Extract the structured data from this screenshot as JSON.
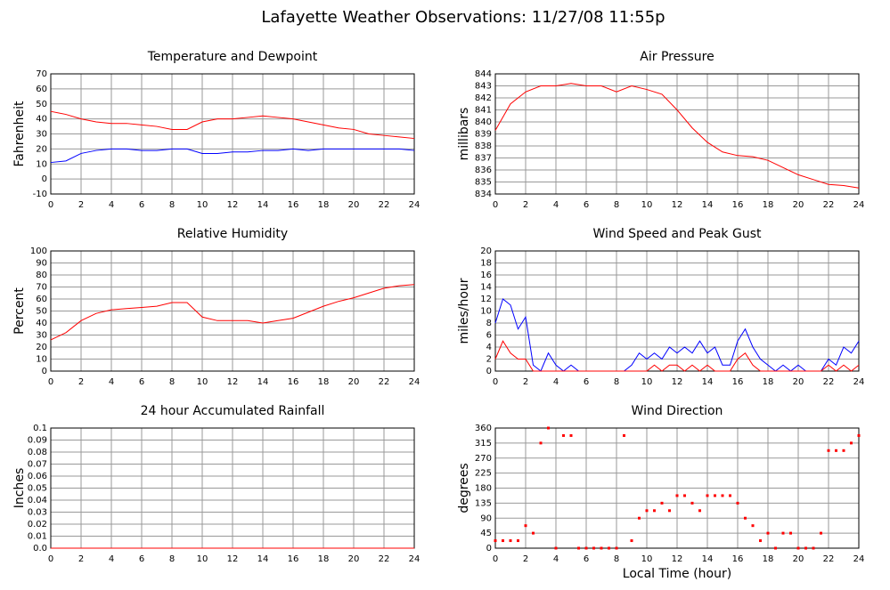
{
  "title": "Lafayette Weather Observations: 11/27/08 11:55p",
  "chart_data": [
    {
      "type": "line",
      "title": "Temperature and Dewpoint",
      "ylabel": "Fahrenheit",
      "x": [
        0,
        1,
        2,
        3,
        4,
        5,
        6,
        7,
        8,
        9,
        10,
        11,
        12,
        13,
        14,
        15,
        16,
        17,
        18,
        19,
        20,
        21,
        22,
        23,
        24
      ],
      "series": [
        {
          "color": "#ff0000",
          "values": [
            45,
            43,
            40,
            38,
            37,
            37,
            36,
            35,
            33,
            33,
            38,
            40,
            40,
            41,
            42,
            41,
            40,
            38,
            36,
            34,
            33,
            30,
            29,
            28,
            27
          ]
        },
        {
          "color": "#0000ff",
          "values": [
            11,
            12,
            17,
            19,
            20,
            20,
            19,
            19,
            20,
            20,
            17,
            17,
            18,
            18,
            19,
            19,
            20,
            19,
            20,
            20,
            20,
            20,
            20,
            20,
            19
          ]
        }
      ],
      "xlim": [
        0,
        24
      ],
      "xticks": [
        0,
        2,
        4,
        6,
        8,
        10,
        12,
        14,
        16,
        18,
        20,
        22,
        24
      ],
      "ylim": [
        -10,
        70
      ],
      "yticks": [
        -10,
        0,
        10,
        20,
        30,
        40,
        50,
        60,
        70
      ],
      "grid": true
    },
    {
      "type": "line",
      "title": "Air Pressure",
      "ylabel": "millibars",
      "x": [
        0,
        1,
        2,
        3,
        4,
        5,
        6,
        7,
        8,
        9,
        10,
        11,
        12,
        13,
        14,
        15,
        16,
        17,
        18,
        19,
        20,
        21,
        22,
        23,
        24
      ],
      "series": [
        {
          "color": "#ff0000",
          "values": [
            839.3,
            841.5,
            842.5,
            843,
            843,
            843.2,
            843,
            843,
            842.5,
            843,
            842.7,
            842.3,
            841,
            839.5,
            838.3,
            837.5,
            837.2,
            837.1,
            836.8,
            836.2,
            835.6,
            835.2,
            834.8,
            834.7,
            834.5
          ]
        }
      ],
      "xlim": [
        0,
        24
      ],
      "xticks": [
        0,
        2,
        4,
        6,
        8,
        10,
        12,
        14,
        16,
        18,
        20,
        22,
        24
      ],
      "ylim": [
        834,
        844
      ],
      "yticks": [
        834,
        835,
        836,
        837,
        838,
        839,
        840,
        841,
        842,
        843,
        844
      ],
      "grid": true
    },
    {
      "type": "line",
      "title": "Relative Humidity",
      "ylabel": "Percent",
      "x": [
        0,
        1,
        2,
        3,
        4,
        5,
        6,
        7,
        8,
        9,
        10,
        11,
        12,
        13,
        14,
        15,
        16,
        17,
        18,
        19,
        20,
        21,
        22,
        23,
        24
      ],
      "series": [
        {
          "color": "#ff0000",
          "values": [
            26,
            32,
            42,
            48,
            51,
            52,
            53,
            54,
            57,
            57,
            45,
            42,
            42,
            42,
            40,
            42,
            44,
            49,
            54,
            58,
            61,
            65,
            69,
            71,
            72
          ]
        }
      ],
      "xlim": [
        0,
        24
      ],
      "xticks": [
        0,
        2,
        4,
        6,
        8,
        10,
        12,
        14,
        16,
        18,
        20,
        22,
        24
      ],
      "ylim": [
        0,
        100
      ],
      "yticks": [
        0,
        10,
        20,
        30,
        40,
        50,
        60,
        70,
        80,
        90,
        100
      ],
      "grid": true
    },
    {
      "type": "line",
      "title": "Wind Speed and Peak Gust",
      "ylabel": "miles/hour",
      "x": [
        0,
        0.5,
        1,
        1.5,
        2,
        2.5,
        3,
        3.5,
        4,
        4.5,
        5,
        5.5,
        6,
        6.5,
        7,
        7.5,
        8,
        8.5,
        9,
        9.5,
        10,
        10.5,
        11,
        11.5,
        12,
        12.5,
        13,
        13.5,
        14,
        14.5,
        15,
        15.5,
        16,
        16.5,
        17,
        17.5,
        18,
        18.5,
        19,
        19.5,
        20,
        20.5,
        21,
        21.5,
        22,
        22.5,
        23,
        23.5,
        24
      ],
      "series": [
        {
          "color": "#0000ff",
          "values": [
            8,
            12,
            11,
            7,
            9,
            1,
            0,
            3,
            1,
            0,
            1,
            0,
            0,
            0,
            0,
            0,
            0,
            0,
            1,
            3,
            2,
            3,
            2,
            4,
            3,
            4,
            3,
            5,
            3,
            4,
            1,
            1,
            5,
            7,
            4,
            2,
            1,
            0,
            1,
            0,
            1,
            0,
            0,
            0,
            2,
            1,
            4,
            3,
            5
          ]
        },
        {
          "color": "#ff0000",
          "values": [
            2,
            5,
            3,
            2,
            2,
            0,
            0,
            0,
            0,
            0,
            0,
            0,
            0,
            0,
            0,
            0,
            0,
            0,
            0,
            0,
            0,
            1,
            0,
            1,
            1,
            0,
            1,
            0,
            1,
            0,
            0,
            0,
            2,
            3,
            1,
            0,
            0,
            0,
            0,
            0,
            0,
            0,
            0,
            0,
            1,
            0,
            1,
            0,
            1
          ]
        }
      ],
      "xlim": [
        0,
        24
      ],
      "xticks": [
        0,
        2,
        4,
        6,
        8,
        10,
        12,
        14,
        16,
        18,
        20,
        22,
        24
      ],
      "ylim": [
        0,
        20
      ],
      "yticks": [
        0,
        2,
        4,
        6,
        8,
        10,
        12,
        14,
        16,
        18,
        20
      ],
      "grid": true
    },
    {
      "type": "line",
      "title": "24 hour Accumulated Rainfall",
      "ylabel": "Inches",
      "x": [
        0,
        24
      ],
      "series": [
        {
          "color": "#ff0000",
          "values": [
            0,
            0
          ]
        }
      ],
      "xlim": [
        0,
        24
      ],
      "xticks": [
        0,
        2,
        4,
        6,
        8,
        10,
        12,
        14,
        16,
        18,
        20,
        22,
        24
      ],
      "ylim": [
        0,
        0.1
      ],
      "yticks": [
        {
          "value": 0,
          "label": "0.0"
        },
        0.01,
        0.02,
        0.03,
        0.04,
        0.05,
        0.06,
        0.07,
        0.08,
        0.09,
        0.1
      ],
      "grid": true
    },
    {
      "type": "scatter",
      "title": "Wind Direction",
      "ylabel": "degrees",
      "xlabel": "Local Time (hour)",
      "x": [
        0,
        0.5,
        1,
        1.5,
        2,
        2.5,
        3,
        3.5,
        4,
        4.5,
        5,
        5.5,
        6,
        6.5,
        7,
        7.5,
        8,
        8.5,
        9,
        9.5,
        10,
        10.5,
        11,
        11.5,
        12,
        12.5,
        13,
        13.5,
        14,
        14.5,
        15,
        15.5,
        16,
        16.5,
        17,
        17.5,
        18,
        18.5,
        19,
        19.5,
        20,
        20.5,
        21,
        21.5,
        22,
        22.5,
        23,
        23.5,
        24
      ],
      "series": [
        {
          "color": "#ff0000",
          "values": [
            22.5,
            22.5,
            22.5,
            22.5,
            67.5,
            45,
            315,
            360,
            0,
            337.5,
            337.5,
            0,
            0,
            0,
            0,
            0,
            0,
            337.5,
            22.5,
            90,
            112.5,
            112.5,
            135,
            112.5,
            157.5,
            157.5,
            135,
            112.5,
            157.5,
            157.5,
            157.5,
            157.5,
            135,
            90,
            67.5,
            22.5,
            45,
            0,
            45,
            45,
            0,
            0,
            0,
            45,
            292.5,
            292.5,
            292.5,
            315,
            337.5
          ]
        }
      ],
      "xlim": [
        0,
        24
      ],
      "xticks": [
        0,
        2,
        4,
        6,
        8,
        10,
        12,
        14,
        16,
        18,
        20,
        22,
        24
      ],
      "ylim": [
        0,
        360
      ],
      "yticks": [
        0,
        45,
        90,
        135,
        180,
        225,
        270,
        315,
        360
      ],
      "grid": true
    }
  ]
}
